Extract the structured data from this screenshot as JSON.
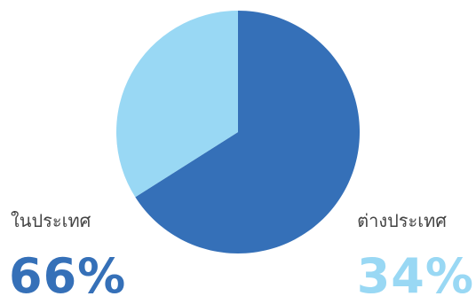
{
  "chart_data": {
    "type": "pie",
    "title": "",
    "series": [
      {
        "name": "ในประเทศ",
        "value": 66,
        "label": "66%",
        "color": "#3570B8"
      },
      {
        "name": "ต่างประเทศ",
        "value": 34,
        "label": "34%",
        "color": "#99D8F4"
      }
    ],
    "legend": "none",
    "start_angle_deg": 0,
    "direction": "clockwise"
  }
}
